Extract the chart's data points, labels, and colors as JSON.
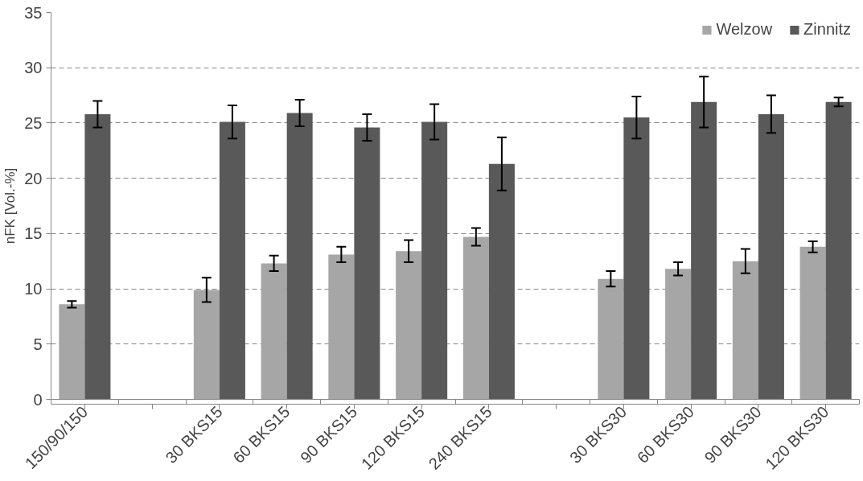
{
  "chart_data": {
    "type": "bar",
    "ylabel": "nFK [Vol.-%]",
    "categories": [
      "150/90/150",
      null,
      "30 BKS15",
      "60 BKS15",
      "90 BKS15",
      "120 BKS15",
      "240 BKS15",
      null,
      "30 BKS30",
      "60 BKS30",
      "90 BKS30",
      "120 BKS30"
    ],
    "series": [
      {
        "name": "Welzow",
        "color": "#a6a6a6",
        "values": [
          8.6,
          null,
          9.9,
          12.3,
          13.1,
          13.4,
          14.7,
          null,
          10.9,
          11.8,
          12.5,
          13.8
        ],
        "errors": [
          0.3,
          null,
          1.1,
          0.7,
          0.7,
          1.0,
          0.8,
          null,
          0.7,
          0.6,
          1.1,
          0.5
        ]
      },
      {
        "name": "Zinnitz",
        "color": "#595959",
        "values": [
          25.8,
          null,
          25.1,
          25.9,
          24.6,
          25.1,
          21.3,
          null,
          25.5,
          26.9,
          25.8,
          26.9
        ],
        "errors": [
          1.2,
          null,
          1.5,
          1.2,
          1.2,
          1.6,
          2.4,
          null,
          1.9,
          2.3,
          1.7,
          0.4
        ]
      }
    ],
    "ylim": [
      0,
      35
    ],
    "yticks": [
      0,
      5,
      10,
      15,
      20,
      25,
      30,
      35
    ],
    "grid": "y",
    "legend": "top right"
  }
}
